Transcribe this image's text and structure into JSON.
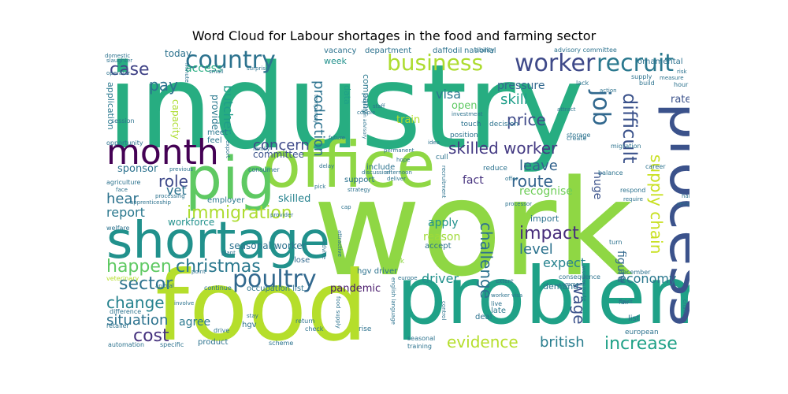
{
  "chart_data": {
    "type": "wordcloud",
    "title": "Word Cloud for Labour shortages in the food and farming sector",
    "words": [
      {
        "text": "industry",
        "weight": 100,
        "color": "#27ad81"
      },
      {
        "text": "work",
        "weight": 97,
        "color": "#8fd744"
      },
      {
        "text": "food",
        "weight": 72,
        "color": "#b5de2b"
      },
      {
        "text": "problem",
        "weight": 68,
        "color": "#1fa187"
      },
      {
        "text": "office",
        "weight": 55,
        "color": "#8fd744"
      },
      {
        "text": "process",
        "weight": 52,
        "color": "#3b528b"
      },
      {
        "text": "pig",
        "weight": 48,
        "color": "#5ec962"
      },
      {
        "text": "shortage",
        "weight": 46,
        "color": "#21918c"
      },
      {
        "text": "month",
        "weight": 38,
        "color": "#440154"
      },
      {
        "text": "country",
        "weight": 30,
        "color": "#2c728e"
      },
      {
        "text": "worker",
        "weight": 29,
        "color": "#3e4989"
      },
      {
        "text": "business",
        "weight": 29,
        "color": "#addc30"
      },
      {
        "text": "recruit",
        "weight": 28,
        "color": "#2a788e"
      },
      {
        "text": "job",
        "weight": 26,
        "color": "#31688e"
      },
      {
        "text": "poultry",
        "weight": 24,
        "color": "#31688e"
      },
      {
        "text": "difficult",
        "weight": 21,
        "color": "#3b528b"
      },
      {
        "text": "immigration",
        "weight": 21,
        "color": "#addc30"
      },
      {
        "text": "christmas",
        "weight": 20,
        "color": "#2a788e"
      },
      {
        "text": "skilled worker",
        "weight": 20,
        "color": "#443a83"
      },
      {
        "text": "case",
        "weight": 20,
        "color": "#414487"
      },
      {
        "text": "happen",
        "weight": 20,
        "color": "#5ec962"
      },
      {
        "text": "evidence",
        "weight": 20,
        "color": "#b5de2b"
      },
      {
        "text": "increase",
        "weight": 20,
        "color": "#1fa187"
      },
      {
        "text": "supply chain",
        "weight": 19,
        "color": "#c8e020"
      },
      {
        "text": "sector",
        "weight": 19,
        "color": "#2c728e"
      },
      {
        "text": "change",
        "weight": 19,
        "color": "#26828e"
      },
      {
        "text": "price",
        "weight": 19,
        "color": "#3e4989"
      },
      {
        "text": "impact",
        "weight": 19,
        "color": "#472d7b"
      },
      {
        "text": "challenge",
        "weight": 19,
        "color": "#2c728e"
      },
      {
        "text": "wage",
        "weight": 18,
        "color": "#3b528b"
      },
      {
        "text": "cost",
        "weight": 18,
        "color": "#46327e"
      },
      {
        "text": "concern",
        "weight": 18,
        "color": "#3e4989"
      },
      {
        "text": "situation",
        "weight": 17,
        "color": "#2c728e"
      },
      {
        "text": "british",
        "weight": 17,
        "color": "#287d8e"
      },
      {
        "text": "leave",
        "weight": 17,
        "color": "#33638d"
      },
      {
        "text": "route",
        "weight": 17,
        "color": "#33638d"
      },
      {
        "text": "production",
        "weight": 17,
        "color": "#2c728e"
      },
      {
        "text": "pay",
        "weight": 17,
        "color": "#2c728e"
      },
      {
        "text": "role",
        "weight": 17,
        "color": "#3e4989"
      },
      {
        "text": "hear",
        "weight": 17,
        "color": "#2c728e"
      },
      {
        "text": "level",
        "weight": 17,
        "color": "#2c728e"
      },
      {
        "text": "skill",
        "weight": 16,
        "color": "#1f9e89"
      },
      {
        "text": "driver",
        "weight": 16,
        "color": "#21918c"
      },
      {
        "text": "economy",
        "weight": 15,
        "color": "#2a788e"
      },
      {
        "text": "visa",
        "weight": 15,
        "color": "#2a788e"
      },
      {
        "text": "report",
        "weight": 15,
        "color": "#2a788e"
      },
      {
        "text": "butcher",
        "weight": 15,
        "color": "#1f9e89"
      },
      {
        "text": "solution",
        "weight": 14,
        "color": "#2a788e"
      },
      {
        "text": "vet",
        "weight": 14,
        "color": "#2c728e"
      },
      {
        "text": "expect",
        "weight": 14,
        "color": "#26828e"
      },
      {
        "text": "fact",
        "weight": 13,
        "color": "#46327e"
      },
      {
        "text": "figure",
        "weight": 13,
        "color": "#31688e"
      },
      {
        "text": "huge",
        "weight": 12,
        "color": "#3b528b"
      },
      {
        "text": "pressure",
        "weight": 12,
        "color": "#31688e"
      },
      {
        "text": "recognise",
        "weight": 12,
        "color": "#6ece58"
      },
      {
        "text": "shortage occupation",
        "weight": 12,
        "color": "#2a788e"
      },
      {
        "text": "agree",
        "weight": 12,
        "color": "#2a788e"
      },
      {
        "text": "reason",
        "weight": 12,
        "color": "#a0da39"
      },
      {
        "text": "pandemic",
        "weight": 12,
        "color": "#481a6c"
      },
      {
        "text": "apply",
        "weight": 12,
        "color": "#21918c"
      },
      {
        "text": "seasonal worker",
        "weight": 11,
        "color": "#2c728e"
      },
      {
        "text": "rate",
        "weight": 11,
        "color": "#3b528b"
      },
      {
        "text": "open",
        "weight": 11,
        "color": "#5ec962"
      },
      {
        "text": "train",
        "weight": 11,
        "color": "#b5de2b"
      },
      {
        "text": "skilled",
        "weight": 11,
        "color": "#26828e"
      },
      {
        "text": "access",
        "weight": 11,
        "color": "#27ad81"
      },
      {
        "text": "sponsor",
        "weight": 11,
        "color": "#2c728e"
      },
      {
        "text": "committee",
        "weight": 11,
        "color": "#3b528b"
      },
      {
        "text": "workforce",
        "weight": 11,
        "color": "#21918c"
      },
      {
        "text": "today",
        "weight": 11,
        "color": "#2c728e"
      },
      {
        "text": "capacity",
        "weight": 10,
        "color": "#addc30"
      },
      {
        "text": "provide",
        "weight": 10,
        "color": "#2a788e"
      },
      {
        "text": "application",
        "weight": 10,
        "color": "#2a788e"
      },
      {
        "text": "company",
        "weight": 10,
        "color": "#2a788e"
      },
      {
        "text": "data",
        "weight": 10,
        "color": "#1fa187"
      },
      {
        "text": "week",
        "weight": 10,
        "color": "#21918c"
      },
      {
        "text": "import",
        "weight": 10,
        "color": "#2c728e"
      },
      {
        "text": "demand",
        "weight": 10,
        "color": "#2c728e"
      },
      {
        "text": "hgv driver",
        "weight": 9,
        "color": "#2c728e"
      },
      {
        "text": "occupation list",
        "weight": 9,
        "color": "#2c728e"
      },
      {
        "text": "late",
        "weight": 9,
        "color": "#2a788e"
      },
      {
        "text": "employer",
        "weight": 9,
        "color": "#2a788e"
      },
      {
        "text": "lose",
        "weight": 9,
        "color": "#31688e"
      },
      {
        "text": "feel",
        "weight": 9,
        "color": "#2a788e"
      },
      {
        "text": "meet",
        "weight": 9,
        "color": "#2a788e"
      },
      {
        "text": "vacancy",
        "weight": 9,
        "color": "#2c728e"
      },
      {
        "text": "department",
        "weight": 9,
        "color": "#2c728e"
      },
      {
        "text": "daffodil",
        "weight": 9,
        "color": "#2c728e"
      },
      {
        "text": "national",
        "weight": 9,
        "color": "#2c728e"
      },
      {
        "text": "ornamental",
        "weight": 9,
        "color": "#2c728e"
      },
      {
        "text": "include",
        "weight": 9,
        "color": "#2c728e"
      },
      {
        "text": "support",
        "weight": 9,
        "color": "#2c728e"
      },
      {
        "text": "hgv",
        "weight": 9,
        "color": "#2c728e"
      },
      {
        "text": "product",
        "weight": 9,
        "color": "#2c728e"
      },
      {
        "text": "accept",
        "weight": 9,
        "color": "#2c728e"
      },
      {
        "text": "deal",
        "weight": 9,
        "color": "#2c728e"
      },
      {
        "text": "list",
        "weight": 9,
        "color": "#2c728e"
      },
      {
        "text": "european",
        "weight": 8,
        "color": "#2c728e"
      },
      {
        "text": "rise",
        "weight": 8,
        "color": "#2c728e"
      },
      {
        "text": "position",
        "weight": 8,
        "color": "#2c728e"
      },
      {
        "text": "touch",
        "weight": 8,
        "color": "#2c728e"
      },
      {
        "text": "decision",
        "weight": 8,
        "color": "#2c728e"
      },
      {
        "text": "reduce",
        "weight": 8,
        "color": "#2c728e"
      },
      {
        "text": "pork",
        "weight": 8,
        "color": "#8fd744"
      },
      {
        "text": "cull",
        "weight": 8,
        "color": "#2c728e"
      },
      {
        "text": "continue",
        "weight": 7,
        "color": "#2c728e"
      },
      {
        "text": "consumer",
        "weight": 7,
        "color": "#2c728e"
      },
      {
        "text": "session",
        "weight": 7,
        "color": "#2c728e"
      },
      {
        "text": "opportunity",
        "weight": 7,
        "color": "#2c728e"
      },
      {
        "text": "agriculture",
        "weight": 7,
        "color": "#2c728e"
      },
      {
        "text": "welfare",
        "weight": 7,
        "color": "#2c728e"
      },
      {
        "text": "veterinary",
        "weight": 7,
        "color": "#b5de2b"
      },
      {
        "text": "difference",
        "weight": 7,
        "color": "#2c728e"
      },
      {
        "text": "retailer",
        "weight": 7,
        "color": "#2c728e"
      },
      {
        "text": "automation",
        "weight": 7,
        "color": "#2c728e"
      },
      {
        "text": "specific",
        "weight": 7,
        "color": "#2c728e"
      },
      {
        "text": "drive",
        "weight": 7,
        "color": "#2c728e"
      },
      {
        "text": "scheme",
        "weight": 7,
        "color": "#2c728e"
      },
      {
        "text": "check",
        "weight": 7,
        "color": "#2c728e"
      },
      {
        "text": "return",
        "weight": 7,
        "color": "#2c728e"
      },
      {
        "text": "training",
        "weight": 7,
        "color": "#2c728e"
      },
      {
        "text": "seasonal",
        "weight": 7,
        "color": "#2c728e"
      },
      {
        "text": "fair",
        "weight": 7,
        "color": "#2c728e"
      },
      {
        "text": "live",
        "weight": 7,
        "color": "#2c728e"
      },
      {
        "text": "consequence",
        "weight": 7,
        "color": "#2c728e"
      },
      {
        "text": "december",
        "weight": 7,
        "color": "#2c728e"
      },
      {
        "text": "career",
        "weight": 7,
        "color": "#2c728e"
      },
      {
        "text": "respond",
        "weight": 7,
        "color": "#2c728e"
      },
      {
        "text": "balance",
        "weight": 7,
        "color": "#2c728e"
      },
      {
        "text": "turn",
        "weight": 7,
        "color": "#2c728e"
      },
      {
        "text": "migration",
        "weight": 7,
        "color": "#2c728e"
      },
      {
        "text": "storage",
        "weight": 7,
        "color": "#2c728e"
      },
      {
        "text": "create",
        "weight": 7,
        "color": "#2c728e"
      },
      {
        "text": "lack",
        "weight": 7,
        "color": "#2c728e"
      },
      {
        "text": "supply",
        "weight": 7,
        "color": "#2c728e"
      },
      {
        "text": "build",
        "weight": 7,
        "color": "#2c728e"
      },
      {
        "text": "hour",
        "weight": 7,
        "color": "#2c728e"
      },
      {
        "text": "measure",
        "weight": 6,
        "color": "#2c728e"
      },
      {
        "text": "risk",
        "weight": 6,
        "color": "#2c728e"
      },
      {
        "text": "advisory committee",
        "weight": 6,
        "color": "#2c728e"
      },
      {
        "text": "ability",
        "weight": 6,
        "color": "#2c728e"
      },
      {
        "text": "attract",
        "weight": 6,
        "color": "#2c728e"
      },
      {
        "text": "investment",
        "weight": 6,
        "color": "#2c728e"
      },
      {
        "text": "staff",
        "weight": 6,
        "color": "#2c728e"
      },
      {
        "text": "couple",
        "weight": 6,
        "color": "#2c728e"
      },
      {
        "text": "surprise",
        "weight": 6,
        "color": "#2c728e"
      },
      {
        "text": "small",
        "weight": 6,
        "color": "#2c728e"
      },
      {
        "text": "slaughter",
        "weight": 6,
        "color": "#2c728e"
      },
      {
        "text": "operator",
        "weight": 6,
        "color": "#2c728e"
      },
      {
        "text": "domestic",
        "weight": 6,
        "color": "#2c728e"
      },
      {
        "text": "minute",
        "weight": 6,
        "color": "#2c728e"
      },
      {
        "text": "family",
        "weight": 6,
        "color": "#2c728e"
      },
      {
        "text": "export",
        "weight": 6,
        "color": "#2c728e"
      },
      {
        "text": "previous",
        "weight": 6,
        "color": "#2c728e"
      },
      {
        "text": "face",
        "weight": 6,
        "color": "#2c728e"
      },
      {
        "text": "processing",
        "weight": 6,
        "color": "#2c728e"
      },
      {
        "text": "apprenticeship",
        "weight": 6,
        "color": "#2c728e"
      },
      {
        "text": "provider",
        "weight": 6,
        "color": "#2c728e"
      },
      {
        "text": "plant",
        "weight": 6,
        "color": "#2c728e"
      },
      {
        "text": "point",
        "weight": 6,
        "color": "#2c728e"
      },
      {
        "text": "animal",
        "weight": 6,
        "color": "#2c728e"
      },
      {
        "text": "involve",
        "weight": 6,
        "color": "#2c728e"
      },
      {
        "text": "stay",
        "weight": 6,
        "color": "#2c728e"
      },
      {
        "text": "advice",
        "weight": 6,
        "color": "#2c728e"
      },
      {
        "text": "attractive",
        "weight": 6,
        "color": "#2c728e"
      },
      {
        "text": "future",
        "weight": 6,
        "color": "#2c728e"
      },
      {
        "text": "delay",
        "weight": 6,
        "color": "#2c728e"
      },
      {
        "text": "permanent",
        "weight": 6,
        "color": "#2c728e"
      },
      {
        "text": "afternoon",
        "weight": 6,
        "color": "#2c728e"
      },
      {
        "text": "hope",
        "weight": 6,
        "color": "#2c728e"
      },
      {
        "text": "deliver",
        "weight": 6,
        "color": "#2c728e"
      },
      {
        "text": "idea",
        "weight": 6,
        "color": "#2c728e"
      },
      {
        "text": "discussion",
        "weight": 6,
        "color": "#2c728e"
      },
      {
        "text": "strategy",
        "weight": 6,
        "color": "#2c728e"
      },
      {
        "text": "cap",
        "weight": 6,
        "color": "#2c728e"
      },
      {
        "text": "pick",
        "weight": 6,
        "color": "#2c728e"
      },
      {
        "text": "temporary",
        "weight": 6,
        "color": "#2c728e"
      },
      {
        "text": "food supply",
        "weight": 6,
        "color": "#2c728e"
      },
      {
        "text": "english language",
        "weight": 6,
        "color": "#2c728e"
      },
      {
        "text": "europe",
        "weight": 6,
        "color": "#2c728e"
      },
      {
        "text": "control",
        "weight": 6,
        "color": "#2c728e"
      },
      {
        "text": "recruitment",
        "weight": 6,
        "color": "#2c728e"
      },
      {
        "text": "offer",
        "weight": 6,
        "color": "#2c728e"
      },
      {
        "text": "processor",
        "weight": 6,
        "color": "#2c728e"
      },
      {
        "text": "extent",
        "weight": 6,
        "color": "#2c728e"
      },
      {
        "text": "comment",
        "weight": 6,
        "color": "#2c728e"
      },
      {
        "text": "worker visa",
        "weight": 6,
        "color": "#2c728e"
      },
      {
        "text": "worker route",
        "weight": 6,
        "color": "#2c728e"
      },
      {
        "text": "fault",
        "weight": 6,
        "color": "#2c728e"
      },
      {
        "text": "require",
        "weight": 6,
        "color": "#2c728e"
      },
      {
        "text": "sense",
        "weight": 6,
        "color": "#2c728e"
      },
      {
        "text": "crisis",
        "weight": 6,
        "color": "#2c728e"
      },
      {
        "text": "hard",
        "weight": 6,
        "color": "#2c728e"
      },
      {
        "text": "action",
        "weight": 6,
        "color": "#2c728e"
      },
      {
        "text": "migration advisory",
        "weight": 6,
        "color": "#2c728e"
      },
      {
        "text": "point",
        "weight": 6,
        "color": "#2c728e"
      }
    ]
  }
}
